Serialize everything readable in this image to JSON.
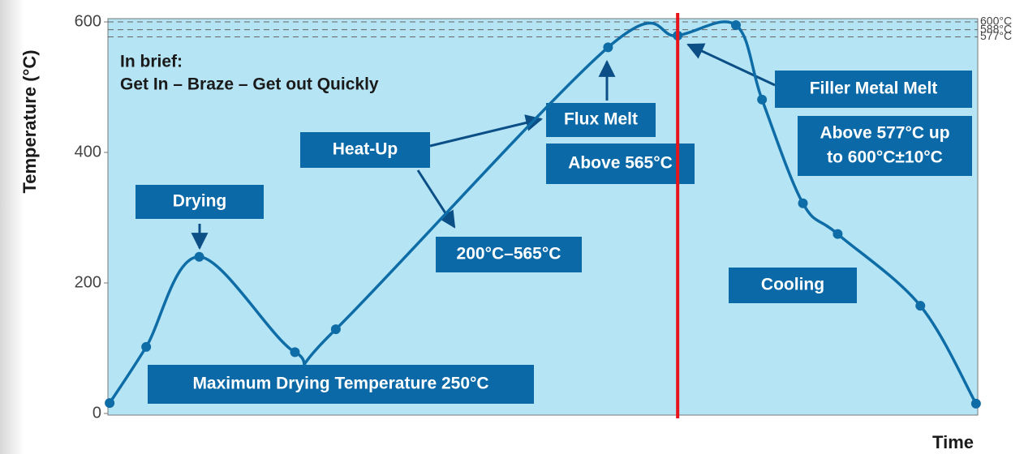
{
  "chart_data": {
    "type": "line",
    "x_label": "Time",
    "y_label": "Temperature (°C)",
    "xlim": [
      0,
      100
    ],
    "ylim": [
      0,
      605
    ],
    "yticks": [
      0,
      200,
      400,
      600
    ],
    "reference_lines": [
      {
        "value": 600,
        "label": "600°C"
      },
      {
        "value": 588,
        "label": "588°C"
      },
      {
        "value": 577,
        "label": "577°C"
      }
    ],
    "vertical_marker": {
      "x": 65.5,
      "color": "#e8141b"
    },
    "series": [
      {
        "color": "#0e6ca6",
        "x": [
          0.2,
          4.4,
          10.5,
          21.5,
          26.2,
          57.5,
          65.5,
          72.2,
          75.2,
          79.9,
          83.9,
          93.4,
          99.8
        ],
        "values": [
          16,
          102,
          240,
          94,
          129,
          561,
          579,
          595,
          481,
          322,
          275,
          165,
          15
        ]
      }
    ],
    "notes": [
      "In brief:",
      "Get In – Braze – Get out Quickly"
    ],
    "annotations": [
      {
        "lines": [
          "Drying"
        ]
      },
      {
        "lines": [
          "Heat-Up"
        ]
      },
      {
        "lines": [
          "Flux Melt"
        ]
      },
      {
        "lines": [
          "Above 565°C"
        ]
      },
      {
        "lines": [
          "200°C–565°C"
        ]
      },
      {
        "lines": [
          "Filler Metal Melt"
        ]
      },
      {
        "lines": [
          "Above 577°C up",
          "to 600°C±10°C"
        ]
      },
      {
        "lines": [
          "Cooling"
        ]
      },
      {
        "lines": [
          "Maximum Drying Temperature 250°C"
        ]
      }
    ]
  }
}
